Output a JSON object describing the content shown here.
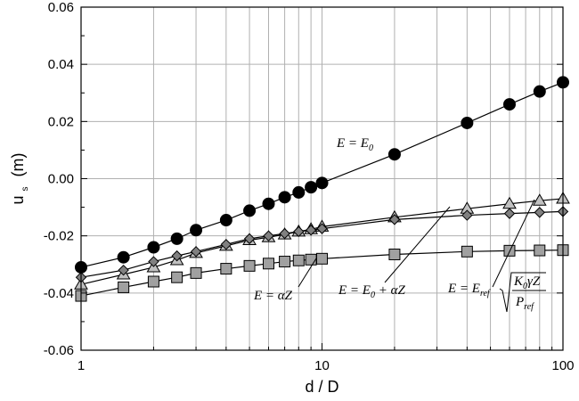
{
  "chart_data": {
    "type": "scatter",
    "xlabel": "d / D",
    "ylabel": "u",
    "ylabel_sub": "s",
    "ylabel_unit": "(m)",
    "xscale": "log",
    "xlim": [
      1,
      100
    ],
    "ylim": [
      -0.06,
      0.06
    ],
    "grid": true,
    "x_ticks": [
      "1",
      "10",
      "100"
    ],
    "y_ticks": [
      "0.06",
      "0.04",
      "0.02",
      "0.00",
      "-0.02",
      "-0.04",
      "-0.06"
    ],
    "series": [
      {
        "marker": "circle",
        "color": "#000000",
        "annotation": "E = E₀",
        "x": [
          1,
          1.5,
          2,
          2.5,
          3,
          4,
          5,
          6,
          7,
          8,
          9,
          10,
          20,
          40,
          60,
          80,
          100
        ],
        "y": [
          -0.031,
          -0.0275,
          -0.024,
          -0.021,
          -0.018,
          -0.0145,
          -0.0112,
          -0.0088,
          -0.0065,
          -0.0048,
          -0.003,
          -0.0015,
          0.0085,
          0.0195,
          0.026,
          0.0305,
          0.0337
        ]
      },
      {
        "marker": "triangle",
        "color": "#c0c0c0",
        "annotation": "E = E_ref √(K₀γZ / P_ref)",
        "x": [
          1,
          1.5,
          2,
          2.5,
          3,
          4,
          5,
          6,
          7,
          8,
          9,
          10,
          20,
          40,
          60,
          80,
          100
        ],
        "y": [
          -0.037,
          -0.0335,
          -0.031,
          -0.0285,
          -0.026,
          -0.0235,
          -0.0215,
          -0.0205,
          -0.0195,
          -0.0185,
          -0.0177,
          -0.0168,
          -0.0135,
          -0.0105,
          -0.0088,
          -0.0077,
          -0.007
        ]
      },
      {
        "marker": "diamond",
        "color": "#808080",
        "annotation": "E = E₀ + αZ",
        "x": [
          1,
          1.5,
          2,
          2.5,
          3,
          4,
          5,
          6,
          7,
          8,
          9,
          10,
          20,
          40,
          60,
          80,
          100
        ],
        "y": [
          -0.0345,
          -0.032,
          -0.029,
          -0.027,
          -0.0255,
          -0.023,
          -0.021,
          -0.02,
          -0.0192,
          -0.0185,
          -0.018,
          -0.0175,
          -0.0143,
          -0.0128,
          -0.0122,
          -0.0118,
          -0.0115
        ]
      },
      {
        "marker": "square",
        "color": "#a0a0a0",
        "annotation": "E = αZ",
        "x": [
          1,
          1.5,
          2,
          2.5,
          3,
          4,
          5,
          6,
          7,
          8,
          9,
          10,
          20,
          40,
          60,
          80,
          100
        ],
        "y": [
          -0.041,
          -0.038,
          -0.036,
          -0.0345,
          -0.033,
          -0.0315,
          -0.0305,
          -0.0297,
          -0.029,
          -0.0286,
          -0.0283,
          -0.028,
          -0.0265,
          -0.0255,
          -0.0252,
          -0.0251,
          -0.025
        ]
      }
    ]
  }
}
